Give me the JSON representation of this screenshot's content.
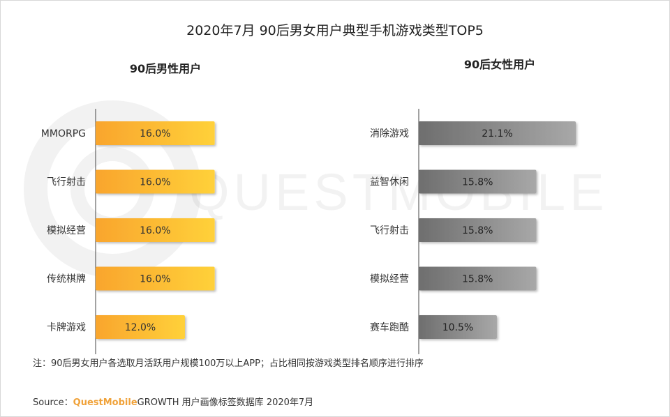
{
  "title": "2020年7月 90后男女用户典型手机游戏类型TOP5",
  "watermark": "QUESTMOBILE",
  "colors": {
    "male_bar_from": "#f9a52d",
    "male_bar_to": "#ffd13a",
    "female_bar_from": "#6e6e6e",
    "female_bar_to": "#a8a8a8",
    "axis": "#444444",
    "brand": "#f0a23a"
  },
  "chart_data": [
    {
      "type": "bar",
      "orientation": "horizontal",
      "title": "90后男性用户",
      "categories": [
        "MMORPG",
        "飞行射击",
        "模拟经营",
        "传统棋牌",
        "卡牌游戏"
      ],
      "values": [
        16.0,
        16.0,
        16.0,
        16.0,
        12.0
      ],
      "labels": [
        "16.0%",
        "16.0%",
        "16.0%",
        "16.0%",
        "12.0%"
      ],
      "unit": "%",
      "xlim": [
        0,
        25
      ]
    },
    {
      "type": "bar",
      "orientation": "horizontal",
      "title": "90后女性用户",
      "categories": [
        "消除游戏",
        "益智休闲",
        "飞行射击",
        "模拟经营",
        "赛车跑酷"
      ],
      "values": [
        21.1,
        15.8,
        15.8,
        15.8,
        10.5
      ],
      "labels": [
        "21.1%",
        "15.8%",
        "15.8%",
        "15.8%",
        "10.5%"
      ],
      "unit": "%",
      "xlim": [
        0,
        25
      ]
    }
  ],
  "footer": {
    "note": "注：90后男女用户各选取月活跃用户规模100万以上APP；占比相同按游戏类型排名顺序进行排序",
    "source_prefix": "Source：",
    "source_brand": "QuestMobile",
    "source_rest": "GROWTH 用户画像标签数据库 2020年7月"
  }
}
